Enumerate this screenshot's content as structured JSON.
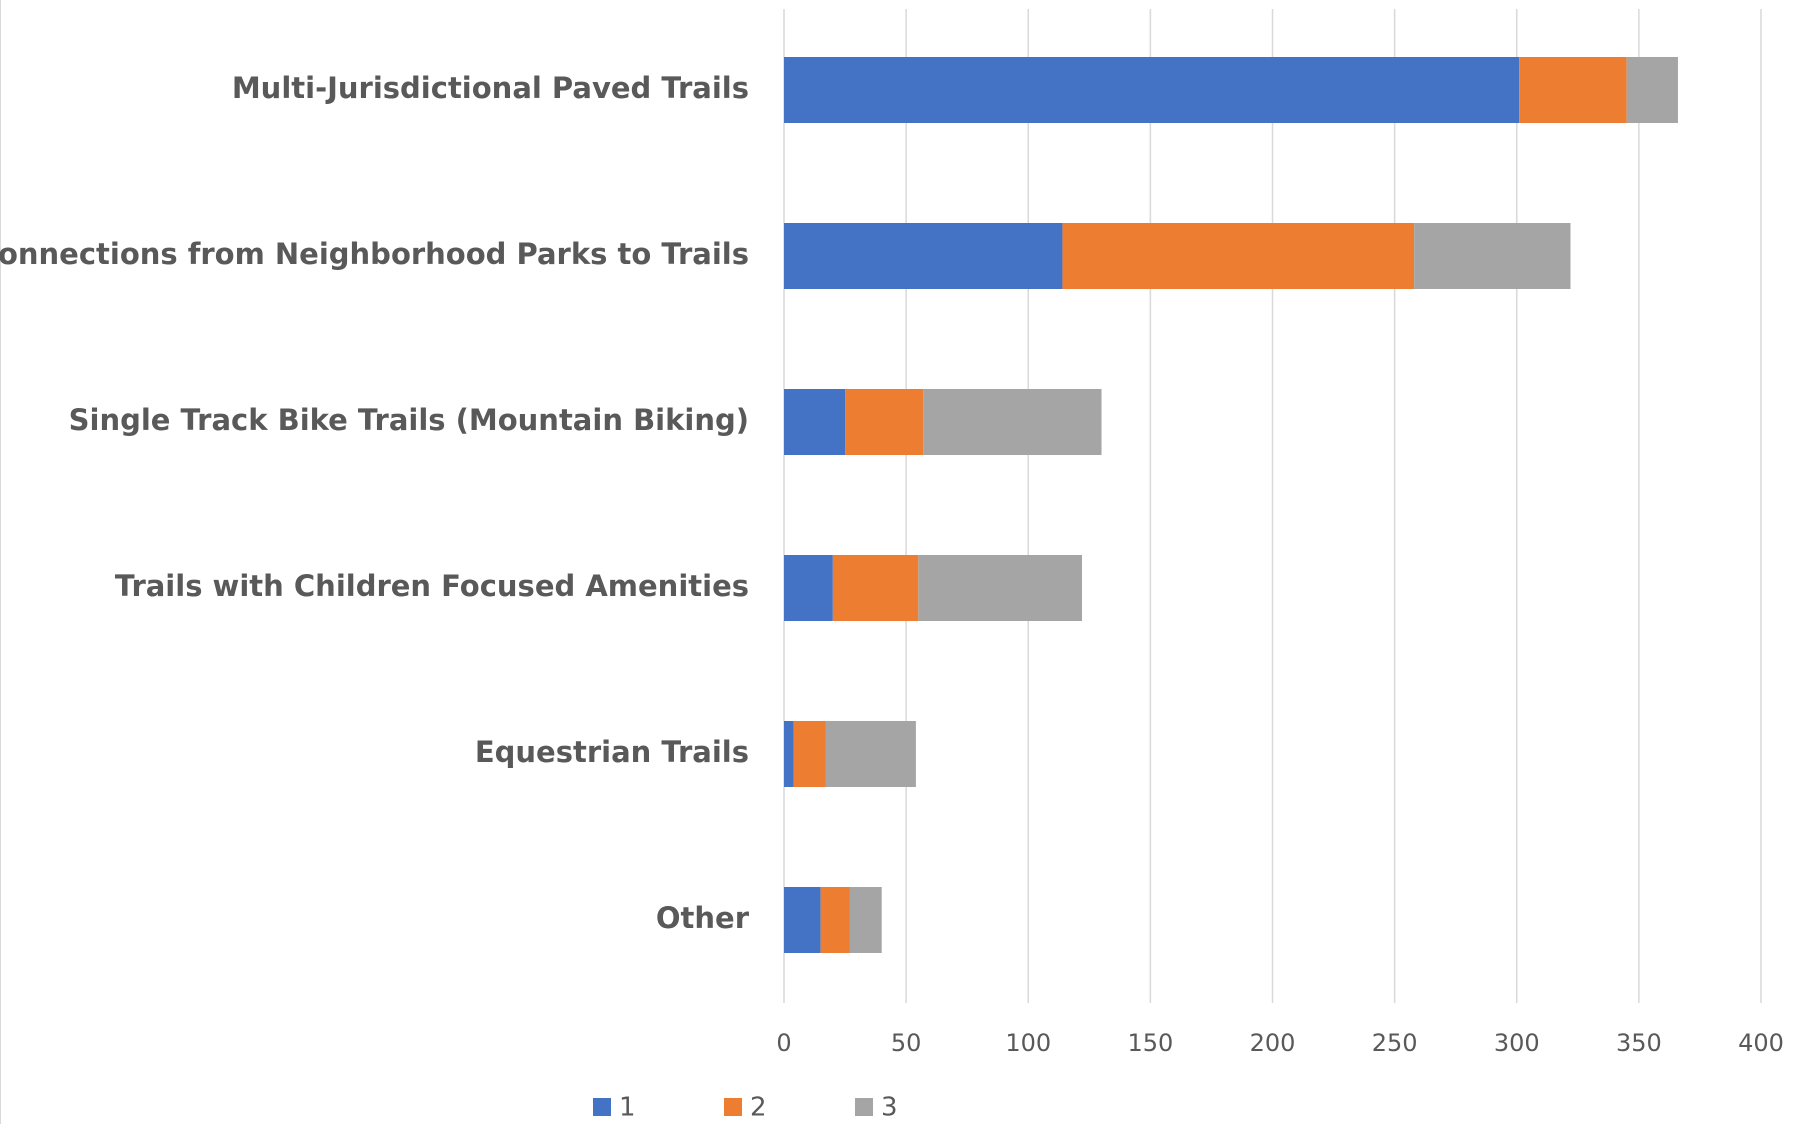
{
  "chart_data": {
    "type": "bar",
    "orientation": "horizontal",
    "stacked": true,
    "categories": [
      "Multi-Jurisdictional Paved Trails",
      "Connections from Neighborhood Parks to Trails",
      "Single Track Bike Trails (Mountain Biking)",
      "Trails with Children Focused Amenities",
      "Equestrian Trails",
      "Other"
    ],
    "series": [
      {
        "name": "1",
        "color": "#4472c4",
        "values": [
          301,
          114,
          25,
          20,
          4,
          15
        ]
      },
      {
        "name": "2",
        "color": "#ed7d31",
        "values": [
          44,
          144,
          32,
          35,
          13,
          12
        ]
      },
      {
        "name": "3",
        "color": "#a5a5a5",
        "values": [
          21,
          64,
          73,
          67,
          37,
          13
        ]
      }
    ],
    "xlim": [
      0,
      400
    ],
    "xticks": [
      0,
      50,
      100,
      150,
      200,
      250,
      300,
      350,
      400
    ],
    "grid": true,
    "legend": "bottom"
  }
}
